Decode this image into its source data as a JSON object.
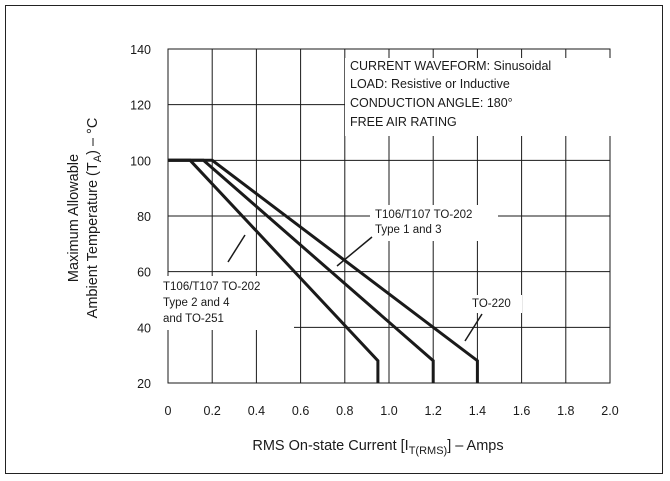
{
  "chart_data": {
    "type": "line",
    "title": "",
    "xlabel": "RMS On-state Current [I_T(RMS)] – Amps",
    "xlabel_main": "RMS On-state Current [I",
    "xlabel_sub": "T(RMS)",
    "xlabel_tail": "] – Amps",
    "ylabel_line1": "Maximum Allowable",
    "ylabel_line2_main": "Ambient Temperature (T",
    "ylabel_line2_sub": "A",
    "ylabel_line2_tail": ") – °C",
    "xlim": [
      0,
      2.0
    ],
    "ylim": [
      20,
      140
    ],
    "x_ticks": [
      "0",
      "0.2",
      "0.4",
      "0.6",
      "0.8",
      "1.0",
      "1.2",
      "1.4",
      "1.6",
      "1.8",
      "2.0"
    ],
    "y_ticks": [
      "20",
      "40",
      "60",
      "80",
      "100",
      "120",
      "140"
    ],
    "grid": true,
    "series": [
      {
        "name": "T106/T107 TO-202 Type 2 and 4 and TO-251",
        "x": [
          0,
          0.1,
          0.95,
          0.95
        ],
        "y": [
          100,
          100,
          28,
          20
        ]
      },
      {
        "name": "T106/T107 TO-202 Type 1 and 3",
        "x": [
          0,
          0.16,
          1.2,
          1.2
        ],
        "y": [
          100,
          100,
          28,
          20
        ]
      },
      {
        "name": "TO-220",
        "x": [
          0,
          0.2,
          1.4,
          1.4
        ],
        "y": [
          100,
          100,
          28,
          20
        ]
      }
    ],
    "info_box": [
      "CURRENT WAVEFORM: Sinusoidal",
      "LOAD: Resistive or Inductive",
      "CONDUCTION ANGLE: 180°",
      "FREE AIR RATING"
    ],
    "annotations": [
      {
        "id": "type24",
        "lines": [
          "T106/T107 TO-202",
          "Type 2 and 4",
          "and TO-251"
        ]
      },
      {
        "id": "type13",
        "lines": [
          "T106/T107 TO-202",
          "Type 1 and 3"
        ]
      },
      {
        "id": "to220",
        "lines": [
          "TO-220"
        ]
      }
    ]
  }
}
